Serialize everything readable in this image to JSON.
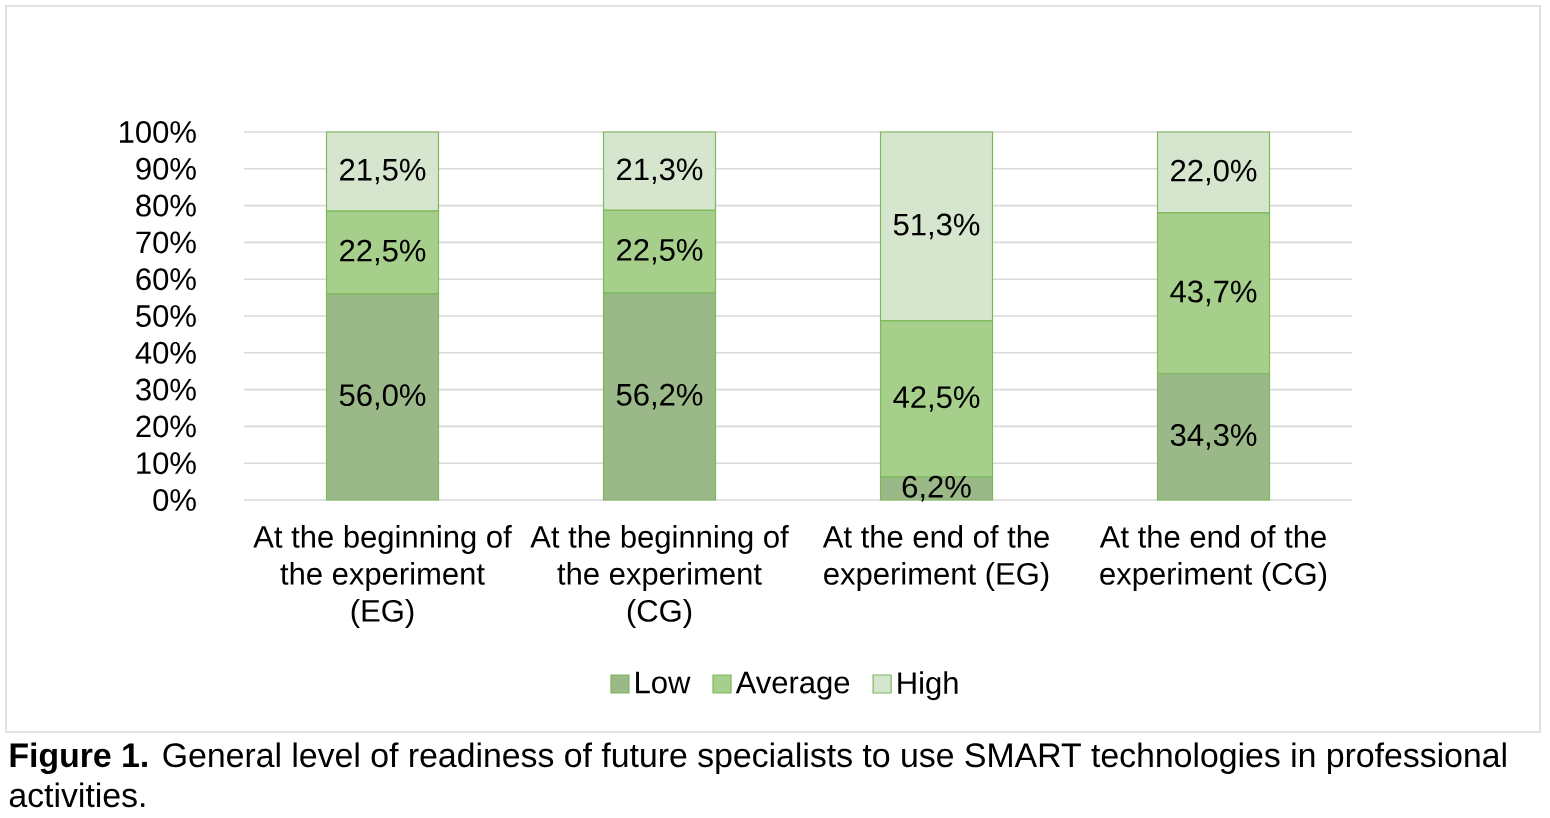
{
  "chart_data": {
    "type": "bar",
    "stacked": true,
    "categories": [
      "At the beginning of the experiment (EG)",
      "At the beginning of the experiment (CG)",
      "At the end of the experiment (EG)",
      "At the end of the experiment (CG)"
    ],
    "series": [
      {
        "name": "Low",
        "color": "#9bb889",
        "values": [
          56.0,
          56.2,
          6.2,
          34.3
        ],
        "value_labels": [
          "56,0%",
          "56,2%",
          "6,2%",
          "34,3%"
        ]
      },
      {
        "name": "Average",
        "color": "#a6cf8b",
        "values": [
          22.5,
          22.5,
          42.5,
          43.7
        ],
        "value_labels": [
          "22,5%",
          "22,5%",
          "42,5%",
          "43,7%"
        ]
      },
      {
        "name": "High",
        "color": "#d6e6ce",
        "values": [
          21.5,
          21.3,
          51.3,
          22.0
        ],
        "value_labels": [
          "21,5%",
          "21,3%",
          "51,3%",
          "22,0%"
        ]
      }
    ],
    "ylim": [
      0,
      100
    ],
    "yticks": [
      {
        "value": 0,
        "label": "0%"
      },
      {
        "value": 10,
        "label": "10%"
      },
      {
        "value": 20,
        "label": "20%"
      },
      {
        "value": 30,
        "label": "30%"
      },
      {
        "value": 40,
        "label": "40%"
      },
      {
        "value": 50,
        "label": "50%"
      },
      {
        "value": 60,
        "label": "60%"
      },
      {
        "value": 70,
        "label": "70%"
      },
      {
        "value": 80,
        "label": "80%"
      },
      {
        "value": 90,
        "label": "90%"
      },
      {
        "value": 100,
        "label": "100%"
      }
    ],
    "grid": "y",
    "legend": "bottom",
    "annotations": [
      "**Figure 1.** General level of readiness of future specialists to use SMART technologies in professional activities."
    ]
  }
}
